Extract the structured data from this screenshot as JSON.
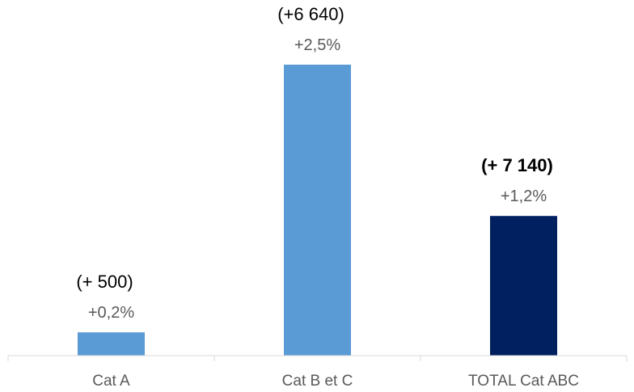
{
  "chart_data": {
    "type": "bar",
    "categories": [
      "Cat A",
      "Cat B et C",
      "TOTAL Cat ABC"
    ],
    "values": [
      0.2,
      2.5,
      1.2
    ],
    "value_unit": "%",
    "pct_labels": [
      "+0,2%",
      "+2,5%",
      "+1,2%"
    ],
    "abs_labels": [
      "(+ 500)",
      "(+6 640)",
      "(+ 7 140)"
    ],
    "abs_bold": [
      false,
      false,
      true
    ],
    "ylim": [
      0,
      2.5
    ],
    "grid": false,
    "title": "",
    "xlabel": "",
    "ylabel": ""
  },
  "colors": {
    "bar_default": "#5b9bd5",
    "bar_total": "#002060",
    "axis": "#d9d9d9",
    "category_text": "#595959",
    "pct_text": "#595959",
    "abs_text": "#000000"
  }
}
